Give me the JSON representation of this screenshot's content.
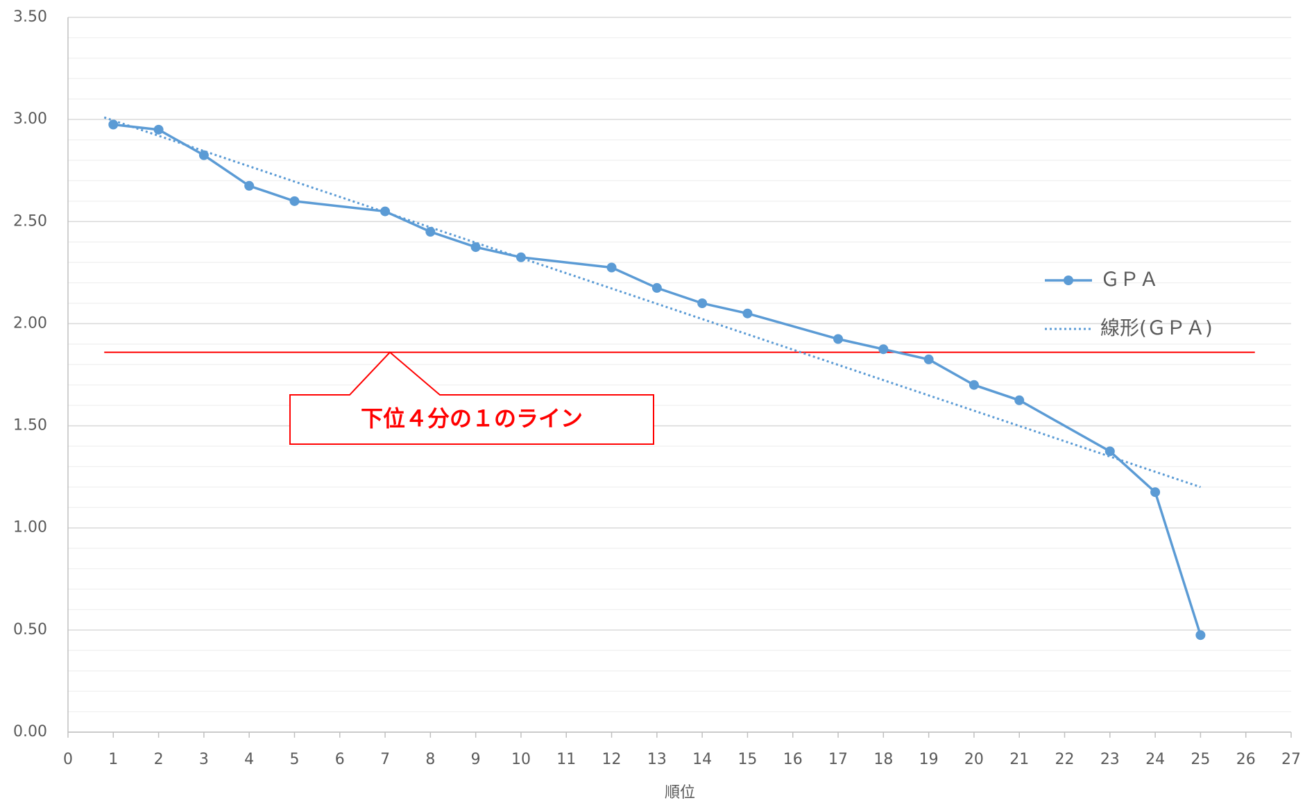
{
  "chart_data": {
    "type": "line",
    "x_label": "順位",
    "series": [
      {
        "name": "ＧＰＡ",
        "color": "#5b9bd5",
        "markers": true,
        "dash": false,
        "x": [
          1,
          2,
          3,
          4,
          5,
          7,
          8,
          9,
          10,
          12,
          13,
          14,
          15,
          17,
          18,
          19,
          20,
          21,
          23,
          24,
          25
        ],
        "values": [
          2.975,
          2.95,
          2.825,
          2.675,
          2.6,
          2.55,
          2.45,
          2.375,
          2.325,
          2.275,
          2.175,
          2.1,
          2.05,
          1.925,
          1.875,
          1.825,
          1.7,
          1.625,
          1.375,
          1.175,
          0.475
        ]
      },
      {
        "name": "線形(ＧＰＡ)",
        "color": "#5b9bd5",
        "markers": false,
        "dash": true,
        "x": [
          0.8,
          25
        ],
        "values": [
          3.01,
          1.2
        ]
      }
    ],
    "xlim": [
      0,
      27
    ],
    "xticks": [
      0,
      1,
      2,
      3,
      4,
      5,
      6,
      7,
      8,
      9,
      10,
      11,
      12,
      13,
      14,
      15,
      16,
      17,
      18,
      19,
      20,
      21,
      22,
      23,
      24,
      25,
      26,
      27
    ],
    "ylim": [
      0,
      3.5
    ],
    "yticks": [
      {
        "value": 0,
        "label": "0.00"
      },
      {
        "value": 0.5,
        "label": "0.50"
      },
      {
        "value": 1,
        "label": "1.00"
      },
      {
        "value": 1.5,
        "label": "1.50"
      },
      {
        "value": 2,
        "label": "2.00"
      },
      {
        "value": 2.5,
        "label": "2.50"
      },
      {
        "value": 3,
        "label": "3.00"
      },
      {
        "value": 3.5,
        "label": "3.50"
      }
    ],
    "minor_yticks": [
      0.1,
      0.2,
      0.3,
      0.4,
      0.6,
      0.7,
      0.8,
      0.9,
      1.1,
      1.2,
      1.3,
      1.4,
      1.6,
      1.7,
      1.8,
      1.9,
      2.1,
      2.2,
      2.3,
      2.4,
      2.6,
      2.7,
      2.8,
      2.9,
      3.1,
      3.2,
      3.3,
      3.4
    ],
    "grid": true,
    "legend": "right",
    "reference_line": {
      "value": 1.86,
      "x": [
        0.8,
        26.2
      ],
      "color": "#ff0000",
      "label": "下位４分の１のライン"
    }
  }
}
